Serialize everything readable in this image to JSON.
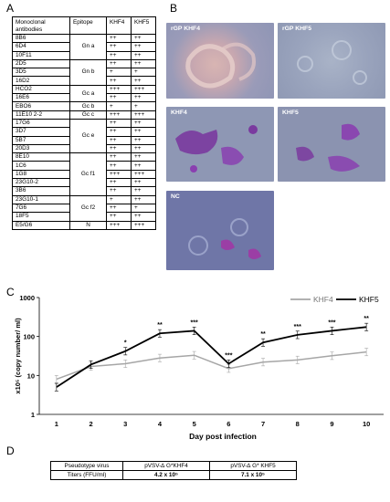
{
  "panels": {
    "a": "A",
    "b": "B",
    "c": "C",
    "d": "D"
  },
  "table_a": {
    "headers": {
      "antibody": "Monoclonal antibodies",
      "epitope": "Epitope",
      "khf4": "KHF4",
      "khf5": "KHF5"
    },
    "rows": [
      [
        "8B6",
        "++",
        "++"
      ],
      [
        "6D4",
        "++",
        "++"
      ],
      [
        "10F11",
        "++",
        "++"
      ],
      [
        "2D5",
        "++",
        "++"
      ],
      [
        "3D5",
        "+",
        "+"
      ],
      [
        "16D2",
        "++",
        "++"
      ],
      [
        "HCO2",
        "+++",
        "+++"
      ],
      [
        "16E6",
        "++",
        "++"
      ],
      [
        "EBO6",
        "+",
        "+"
      ],
      [
        "11E10 2-2",
        "+++",
        "+++"
      ],
      [
        "17G6",
        "++",
        "++"
      ],
      [
        "3D7",
        "++",
        "++"
      ],
      [
        "5B7",
        "++",
        "++"
      ],
      [
        "20D3",
        "++",
        "++"
      ],
      [
        "8E10",
        "++",
        "++"
      ],
      [
        "1C6",
        "++",
        "++"
      ],
      [
        "1G8",
        "+++",
        "+++"
      ],
      [
        "23G10-2",
        "++",
        "++"
      ],
      [
        "3B6",
        "++",
        "++"
      ],
      [
        "23G10-1",
        "+",
        "++"
      ],
      [
        "7G6",
        "++",
        "+"
      ],
      [
        "18F5",
        "++",
        "++"
      ],
      [
        "E5/G6",
        "+++",
        "+++"
      ]
    ],
    "epitopes": [
      "Gn a",
      "Gn b",
      "Gc a",
      "Gc b",
      "Gc c",
      "Gc e",
      "Gc f1",
      "Gc f2",
      "N"
    ]
  },
  "micrographs": [
    "rGP KHF4",
    "rGP KHF5",
    "KHF4",
    "KHF5",
    "NC"
  ],
  "chart_data": {
    "type": "line",
    "x": [
      1,
      2,
      3,
      4,
      5,
      6,
      7,
      8,
      9,
      10
    ],
    "xlabel": "Day post infection",
    "ylabel": "x10⁵ (copy number/ ml)",
    "ylog": true,
    "ylim": [
      1,
      1000
    ],
    "yticks": [
      "1",
      "10",
      "100",
      "1000"
    ],
    "series": [
      {
        "name": "KHF4",
        "color": "#a6a6a6",
        "values": [
          8,
          17,
          20,
          28,
          33,
          15,
          22,
          25,
          32,
          40
        ]
      },
      {
        "name": "KHF5",
        "color": "#000000",
        "values": [
          5,
          19,
          42,
          120,
          140,
          20,
          70,
          110,
          140,
          175
        ]
      }
    ],
    "annotations": [
      {
        "x": 3,
        "text": "*"
      },
      {
        "x": 4,
        "text": "**"
      },
      {
        "x": 5,
        "text": "***"
      },
      {
        "x": 6,
        "text": "***"
      },
      {
        "x": 7,
        "text": "**"
      },
      {
        "x": 8,
        "text": "***"
      },
      {
        "x": 9,
        "text": "***"
      },
      {
        "x": 10,
        "text": "**"
      }
    ]
  },
  "table_d": {
    "header": [
      "Pseudotype virus",
      "pVSV-∆ G*KHF4",
      "pVSV-∆ G* KHF5"
    ],
    "row": [
      "Titers (FFU/ml)",
      "4.2 x 10⁵",
      "7.1 x 10⁵"
    ]
  }
}
